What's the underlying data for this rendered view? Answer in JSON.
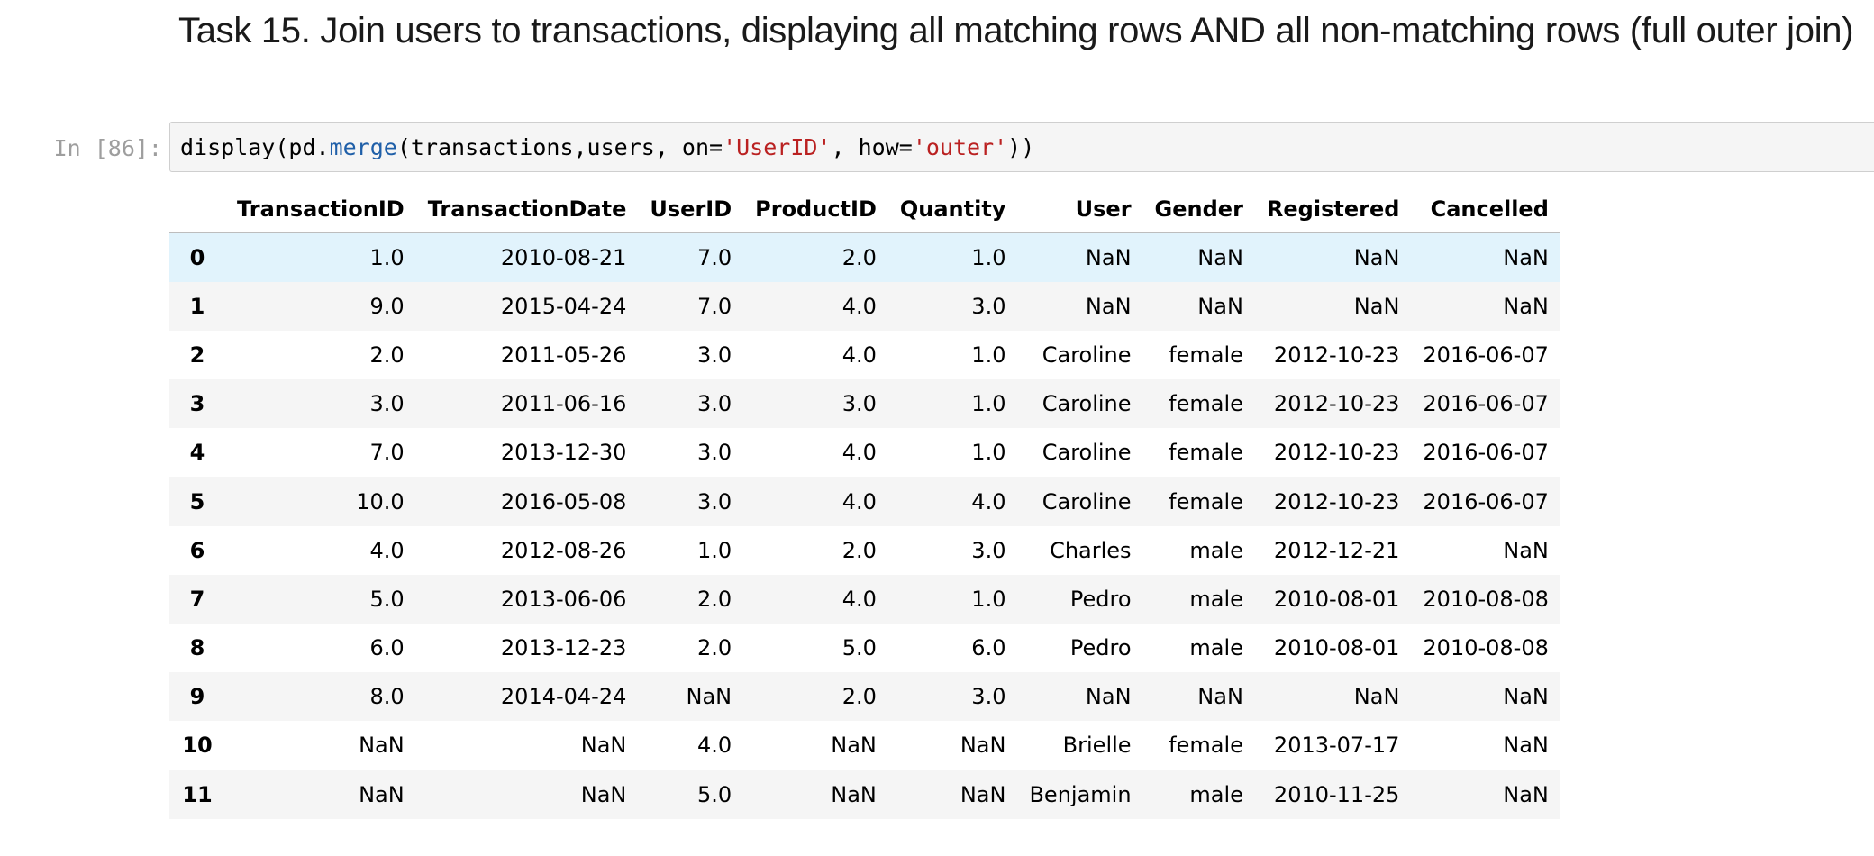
{
  "markdown": {
    "heading": "Task 15. Join users to transactions, displaying all matching rows AND all non-matching rows (full outer join)"
  },
  "cell": {
    "prompt": "In [86]:",
    "code_tokens": [
      {
        "text": "display(pd.",
        "kind": "plain"
      },
      {
        "text": "merge",
        "kind": "attr"
      },
      {
        "text": "(transactions,users, on=",
        "kind": "plain"
      },
      {
        "text": "'UserID'",
        "kind": "str"
      },
      {
        "text": ", how=",
        "kind": "plain"
      },
      {
        "text": "'outer'",
        "kind": "str"
      },
      {
        "text": "))",
        "kind": "plain"
      }
    ]
  },
  "dataframe": {
    "columns": [
      "",
      "TransactionID",
      "TransactionDate",
      "UserID",
      "ProductID",
      "Quantity",
      "User",
      "Gender",
      "Registered",
      "Cancelled"
    ],
    "rows": [
      {
        "index": "0",
        "cells": [
          "1.0",
          "2010-08-21",
          "7.0",
          "2.0",
          "1.0",
          "NaN",
          "NaN",
          "NaN",
          "NaN"
        ],
        "highlighted": true
      },
      {
        "index": "1",
        "cells": [
          "9.0",
          "2015-04-24",
          "7.0",
          "4.0",
          "3.0",
          "NaN",
          "NaN",
          "NaN",
          "NaN"
        ]
      },
      {
        "index": "2",
        "cells": [
          "2.0",
          "2011-05-26",
          "3.0",
          "4.0",
          "1.0",
          "Caroline",
          "female",
          "2012-10-23",
          "2016-06-07"
        ]
      },
      {
        "index": "3",
        "cells": [
          "3.0",
          "2011-06-16",
          "3.0",
          "3.0",
          "1.0",
          "Caroline",
          "female",
          "2012-10-23",
          "2016-06-07"
        ]
      },
      {
        "index": "4",
        "cells": [
          "7.0",
          "2013-12-30",
          "3.0",
          "4.0",
          "1.0",
          "Caroline",
          "female",
          "2012-10-23",
          "2016-06-07"
        ]
      },
      {
        "index": "5",
        "cells": [
          "10.0",
          "2016-05-08",
          "3.0",
          "4.0",
          "4.0",
          "Caroline",
          "female",
          "2012-10-23",
          "2016-06-07"
        ]
      },
      {
        "index": "6",
        "cells": [
          "4.0",
          "2012-08-26",
          "1.0",
          "2.0",
          "3.0",
          "Charles",
          "male",
          "2012-12-21",
          "NaN"
        ]
      },
      {
        "index": "7",
        "cells": [
          "5.0",
          "2013-06-06",
          "2.0",
          "4.0",
          "1.0",
          "Pedro",
          "male",
          "2010-08-01",
          "2010-08-08"
        ]
      },
      {
        "index": "8",
        "cells": [
          "6.0",
          "2013-12-23",
          "2.0",
          "5.0",
          "6.0",
          "Pedro",
          "male",
          "2010-08-01",
          "2010-08-08"
        ]
      },
      {
        "index": "9",
        "cells": [
          "8.0",
          "2014-04-24",
          "NaN",
          "2.0",
          "3.0",
          "NaN",
          "NaN",
          "NaN",
          "NaN"
        ]
      },
      {
        "index": "10",
        "cells": [
          "NaN",
          "NaN",
          "4.0",
          "NaN",
          "NaN",
          "Brielle",
          "female",
          "2013-07-17",
          "NaN"
        ]
      },
      {
        "index": "11",
        "cells": [
          "NaN",
          "NaN",
          "5.0",
          "NaN",
          "NaN",
          "Benjamin",
          "male",
          "2010-11-25",
          "NaN"
        ]
      }
    ]
  },
  "colors": {
    "string": "#ba2121",
    "attribute": "#1f5fa8",
    "prompt": "#9e9e9e",
    "row_hover": "#e1f3fc",
    "row_alt": "#f5f5f5"
  }
}
